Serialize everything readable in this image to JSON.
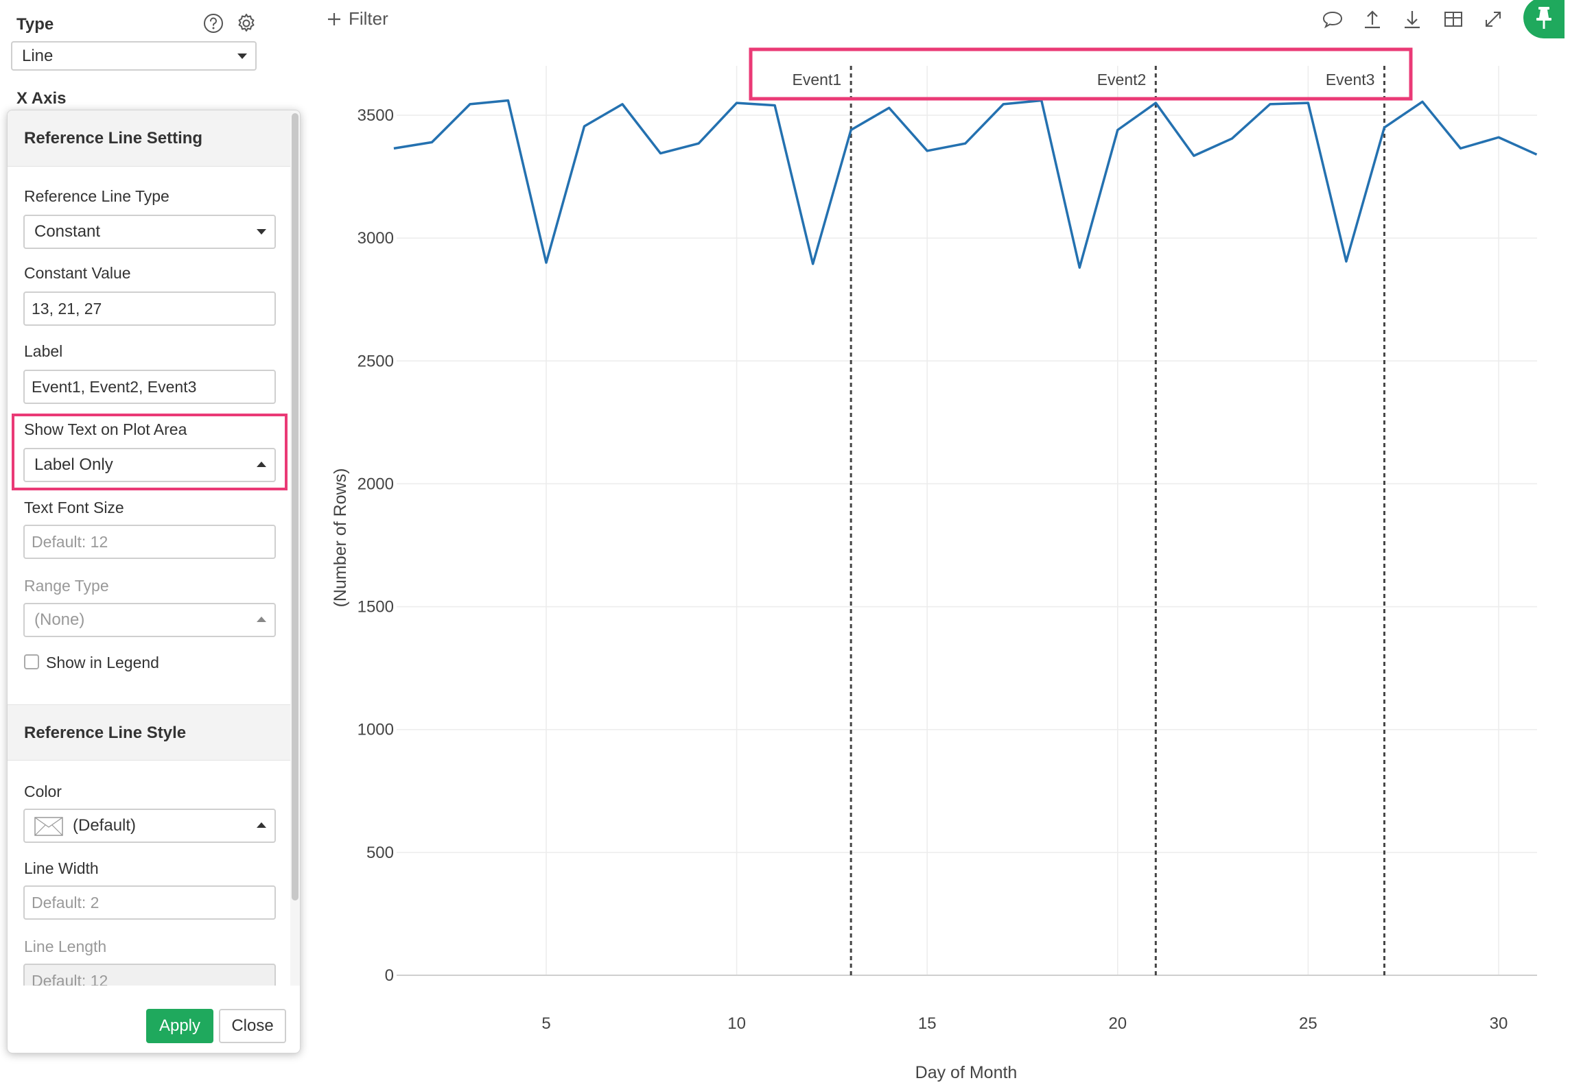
{
  "sidebar": {
    "type_label": "Type",
    "type_value": "Line",
    "x_axis_label": "X Axis",
    "help_icon": "question-circle-icon",
    "settings_icon": "gear-icon"
  },
  "popover": {
    "section1_title": "Reference Line Setting",
    "ref_line_type_label": "Reference Line Type",
    "ref_line_type_value": "Constant",
    "constant_value_label": "Constant Value",
    "constant_value": "13, 21, 27",
    "label_label": "Label",
    "label_value": "Event1, Event2, Event3",
    "show_text_label": "Show Text on Plot Area",
    "show_text_value": "Label Only",
    "text_font_size_label": "Text Font Size",
    "text_font_size_placeholder": "Default: 12",
    "range_type_label": "Range Type",
    "range_type_value": "(None)",
    "show_in_legend_label": "Show in Legend",
    "show_in_legend_checked": false,
    "section2_title": "Reference Line Style",
    "color_label": "Color",
    "color_value": "(Default)",
    "line_width_label": "Line Width",
    "line_width_placeholder": "Default: 2",
    "line_length_label": "Line Length",
    "line_length_placeholder": "Default: 12",
    "apply_label": "Apply",
    "close_label": "Close"
  },
  "toolbar": {
    "filter_label": "Filter",
    "icons": [
      "comment-icon",
      "upload-icon",
      "download-icon",
      "table-icon",
      "expand-icon",
      "pin-icon"
    ],
    "accent_color": "#1fa95d"
  },
  "highlight_color": "#ea3a76",
  "chart_data": {
    "type": "line",
    "xlabel": "Day of Month",
    "ylabel": "(Number of Rows)",
    "xlim": [
      1,
      31
    ],
    "ylim": [
      0,
      3700
    ],
    "xticks": [
      5,
      10,
      15,
      20,
      25,
      30
    ],
    "yticks": [
      0,
      500,
      1000,
      1500,
      2000,
      2500,
      3000,
      3500
    ],
    "grid": true,
    "line_color": "#2471b0",
    "x": [
      1,
      2,
      3,
      4,
      5,
      6,
      7,
      8,
      9,
      10,
      11,
      12,
      13,
      14,
      15,
      16,
      17,
      18,
      19,
      20,
      21,
      22,
      23,
      24,
      25,
      26,
      27,
      28,
      29,
      30,
      31
    ],
    "values": [
      3365,
      3390,
      3545,
      3560,
      2900,
      3455,
      3545,
      3345,
      3385,
      3550,
      3540,
      2895,
      3440,
      3530,
      3355,
      3385,
      3545,
      3560,
      2880,
      3440,
      3550,
      3335,
      3405,
      3545,
      3550,
      2905,
      3450,
      3555,
      3365,
      3410,
      3340
    ],
    "reference_lines": [
      {
        "x": 13,
        "label": "Event1"
      },
      {
        "x": 21,
        "label": "Event2"
      },
      {
        "x": 27,
        "label": "Event3"
      }
    ]
  }
}
